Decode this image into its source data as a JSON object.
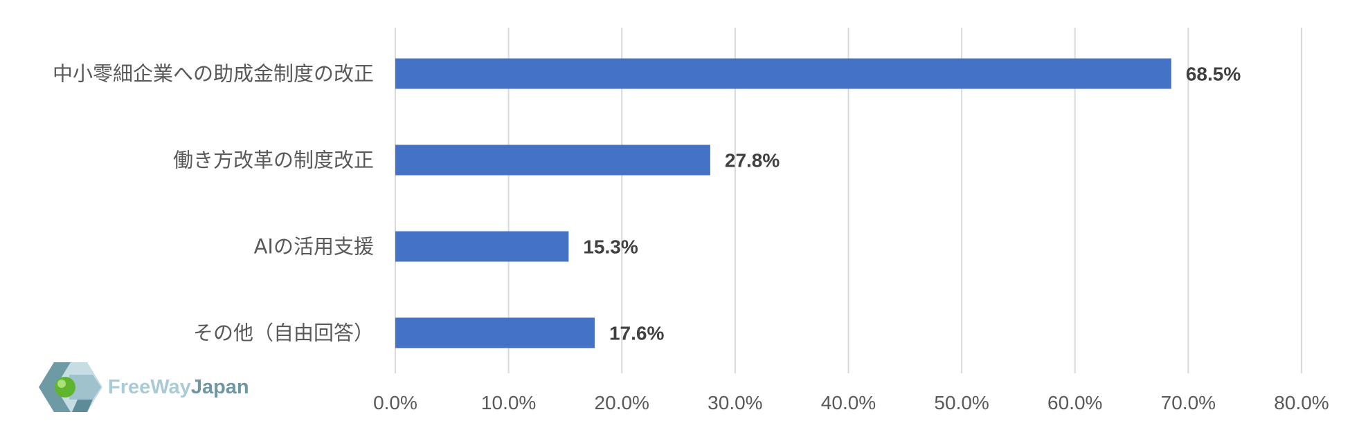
{
  "chart_data": {
    "type": "bar",
    "orientation": "horizontal",
    "categories": [
      "中小零細企業への助成金制度の改正",
      "働き方改革の制度改正",
      "AIの活用支援",
      "その他（自由回答）"
    ],
    "values": [
      68.5,
      27.8,
      15.3,
      17.6
    ],
    "value_labels": [
      "68.5%",
      "27.8%",
      "15.3%",
      "17.6%"
    ],
    "xlim": [
      0,
      80
    ],
    "x_ticks": [
      0,
      10,
      20,
      30,
      40,
      50,
      60,
      70,
      80
    ],
    "x_tick_labels": [
      "0.0%",
      "10.0%",
      "20.0%",
      "30.0%",
      "40.0%",
      "50.0%",
      "60.0%",
      "70.0%",
      "80.0%"
    ],
    "bar_color": "#4472c4",
    "grid": true,
    "title": "",
    "xlabel": "",
    "ylabel": ""
  },
  "logo": {
    "name": "FreeWayJapan",
    "text_part1": "FreeWay",
    "text_part2": "Japan"
  }
}
